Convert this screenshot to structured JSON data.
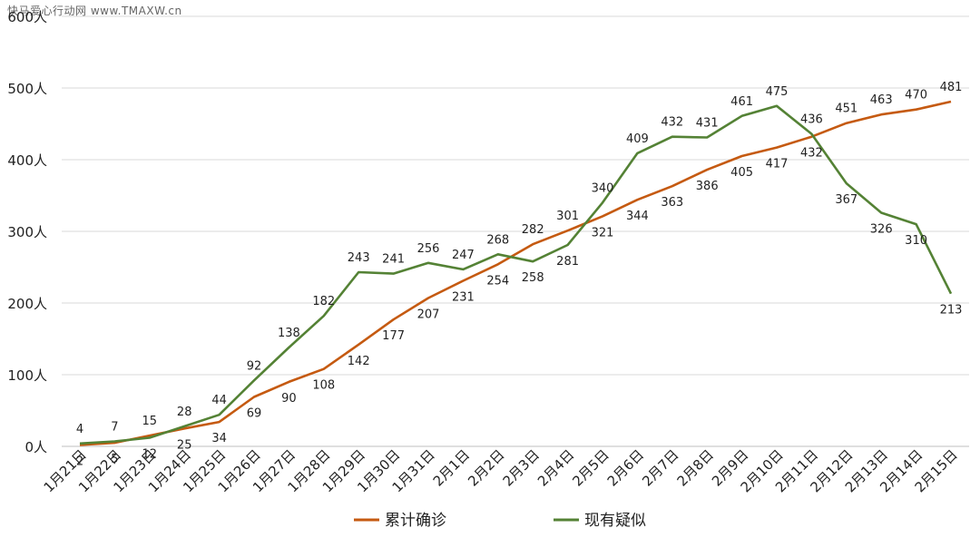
{
  "watermark": "快马爱心行动网 www.TMAXW.cn",
  "chart_data": {
    "type": "line",
    "title": "",
    "xlabel": "",
    "ylabel": "",
    "categories": [
      "1月21日",
      "1月22日",
      "1月23日",
      "1月24日",
      "1月25日",
      "1月26日",
      "1月27日",
      "1月28日",
      "1月29日",
      "1月30日",
      "1月31日",
      "2月1日",
      "2月2日",
      "2月3日",
      "2月4日",
      "2月5日",
      "2月6日",
      "2月7日",
      "2月8日",
      "2月9日",
      "2月10日",
      "2月11日",
      "2月12日",
      "2月13日",
      "2月14日",
      "2月15日"
    ],
    "yticks": [
      "0人",
      "100人",
      "200人",
      "300人",
      "400人",
      "500人",
      "600人"
    ],
    "ylim": [
      0,
      600
    ],
    "grid": true,
    "legend_position": "bottom",
    "series": [
      {
        "name": "累计确诊",
        "color": "#C55A11",
        "values": [
          2,
          5,
          15,
          25,
          34,
          69,
          90,
          108,
          142,
          177,
          207,
          231,
          254,
          282,
          301,
          321,
          344,
          363,
          386,
          405,
          417,
          432,
          451,
          463,
          470,
          481
        ]
      },
      {
        "name": "现有疑似",
        "color": "#548235",
        "values": [
          4,
          7,
          12,
          28,
          44,
          92,
          138,
          182,
          243,
          241,
          256,
          247,
          268,
          258,
          281,
          340,
          409,
          432,
          431,
          461,
          475,
          436,
          367,
          326,
          310,
          213
        ]
      }
    ]
  }
}
